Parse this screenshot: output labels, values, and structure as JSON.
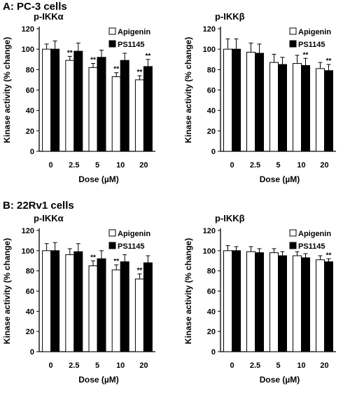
{
  "sections": [
    {
      "title": "A: PC-3 cells"
    },
    {
      "title": "B: 22Rv1 cells"
    }
  ],
  "colors": {
    "apigenin": "#ffffff",
    "ps1145": "#000000",
    "axis": "#000000"
  },
  "chart_data": [
    {
      "type": "bar",
      "panel_title": "p-IKKα",
      "categories": [
        "0",
        "2.5",
        "5",
        "10",
        "20"
      ],
      "xlabel": "Dose (µM)",
      "ylabel": "Kinase activity (% change)",
      "ylim": [
        0,
        120
      ],
      "yticks": [
        "0",
        "20",
        "40",
        "60",
        "80",
        "100",
        "120"
      ],
      "legend_position": "top-right",
      "series": [
        {
          "name": "Apigenin",
          "values": [
            100,
            89,
            82,
            73,
            70
          ],
          "errors": [
            5,
            4,
            4,
            4,
            4
          ],
          "annotations": [
            "",
            "**",
            "**",
            "**",
            "**"
          ]
        },
        {
          "name": "PS1145",
          "values": [
            100,
            98,
            92,
            89,
            83
          ],
          "errors": [
            8,
            8,
            7,
            7,
            7
          ],
          "annotations": [
            "",
            "",
            "",
            "",
            "**"
          ]
        }
      ]
    },
    {
      "type": "bar",
      "panel_title": "p-IKKβ",
      "categories": [
        "0",
        "2.5",
        "5",
        "10",
        "20"
      ],
      "xlabel": "Dose (µM)",
      "ylabel": "Kinase activity (% change)",
      "ylim": [
        0,
        120
      ],
      "yticks": [
        "0",
        "20",
        "40",
        "60",
        "80",
        "100",
        "120"
      ],
      "legend_position": "top-right",
      "series": [
        {
          "name": "Apigenin",
          "values": [
            100,
            97,
            87,
            86,
            81
          ],
          "errors": [
            10,
            9,
            8,
            8,
            6
          ],
          "annotations": [
            "",
            "",
            "",
            "",
            ""
          ]
        },
        {
          "name": "PS1145",
          "values": [
            100,
            96,
            85,
            84,
            79
          ],
          "errors": [
            10,
            9,
            7,
            7,
            6
          ],
          "annotations": [
            "",
            "",
            "",
            "**",
            "**"
          ]
        }
      ]
    },
    {
      "type": "bar",
      "panel_title": "p-IKKα",
      "categories": [
        "0",
        "2.5",
        "5",
        "10",
        "20"
      ],
      "xlabel": "Dose (µM)",
      "ylabel": "Kinase activity (% change)",
      "ylim": [
        0,
        120
      ],
      "yticks": [
        "0",
        "20",
        "40",
        "60",
        "80",
        "100",
        "120"
      ],
      "legend_position": "top-right",
      "series": [
        {
          "name": "Apigenin",
          "values": [
            100,
            96,
            85,
            81,
            72
          ],
          "errors": [
            7,
            6,
            5,
            5,
            5
          ],
          "annotations": [
            "",
            "",
            "**",
            "**",
            "**"
          ]
        },
        {
          "name": "PS1145",
          "values": [
            100,
            99,
            92,
            89,
            88
          ],
          "errors": [
            8,
            8,
            8,
            7,
            7
          ],
          "annotations": [
            "",
            "",
            "",
            "",
            ""
          ]
        }
      ]
    },
    {
      "type": "bar",
      "panel_title": "p-IKKβ",
      "categories": [
        "0",
        "2.5",
        "5",
        "10",
        "20"
      ],
      "xlabel": "Dose (µM)",
      "ylabel": "Kinase activity (% change)",
      "ylim": [
        0,
        120
      ],
      "yticks": [
        "0",
        "20",
        "40",
        "60",
        "80",
        "100",
        "120"
      ],
      "legend_position": "top-right",
      "series": [
        {
          "name": "Apigenin",
          "values": [
            100,
            99,
            98,
            95,
            91
          ],
          "errors": [
            5,
            5,
            4,
            4,
            4
          ],
          "annotations": [
            "",
            "",
            "",
            "",
            ""
          ]
        },
        {
          "name": "PS1145",
          "values": [
            100,
            98,
            95,
            93,
            89
          ],
          "errors": [
            4,
            4,
            4,
            4,
            3
          ],
          "annotations": [
            "",
            "",
            "",
            "",
            "**"
          ]
        }
      ]
    }
  ]
}
